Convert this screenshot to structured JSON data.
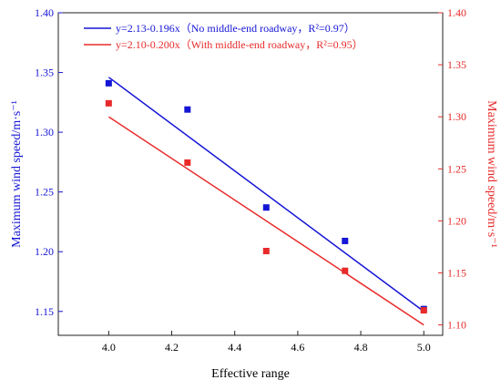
{
  "chart_data": {
    "type": "scatter",
    "xlabel": "Effective range",
    "ylabel_left": "Maximum wind speed/m·s⁻¹",
    "ylabel_right": "Maximum wind speed/m·s⁻¹",
    "xlim": [
      3.84,
      5.06
    ],
    "xticks": [
      4.0,
      4.2,
      4.4,
      4.6,
      4.8,
      5.0
    ],
    "xtick_labels": [
      "4.0",
      "4.2",
      "4.4",
      "4.6",
      "4.8",
      "5.0"
    ],
    "ylim_left": [
      1.13,
      1.4
    ],
    "yticks_left": [
      1.15,
      1.2,
      1.25,
      1.3,
      1.35,
      1.4
    ],
    "ytick_labels_left": [
      "1.15",
      "1.20",
      "1.25",
      "1.30",
      "1.35",
      "1.40"
    ],
    "ylim_right": [
      1.09,
      1.4
    ],
    "yticks_right": [
      1.1,
      1.15,
      1.2,
      1.25,
      1.3,
      1.35,
      1.4
    ],
    "ytick_labels_right": [
      "1.10",
      "1.15",
      "1.20",
      "1.25",
      "1.30",
      "1.35",
      "1.40"
    ],
    "grid": false,
    "legend_position": "top-left",
    "series": [
      {
        "name": "y=2.13-0.196x（No middle-end roadway，R²=0.97）",
        "color": "#1515d6",
        "axis": "left",
        "x": [
          4.0,
          4.25,
          4.5,
          4.75,
          5.0
        ],
        "y": [
          1.341,
          1.319,
          1.237,
          1.209,
          1.152
        ],
        "fit": {
          "intercept": 2.13,
          "slope": -0.196
        }
      },
      {
        "name": "y=2.10-0.200x（With middle-end roadway，R²=0.95）",
        "color": "#e82a2a",
        "axis": "right",
        "x": [
          4.0,
          4.25,
          4.5,
          4.75,
          5.0
        ],
        "y": [
          1.313,
          1.256,
          1.171,
          1.152,
          1.114
        ],
        "fit": {
          "intercept": 2.1,
          "slope": -0.2
        }
      }
    ]
  }
}
